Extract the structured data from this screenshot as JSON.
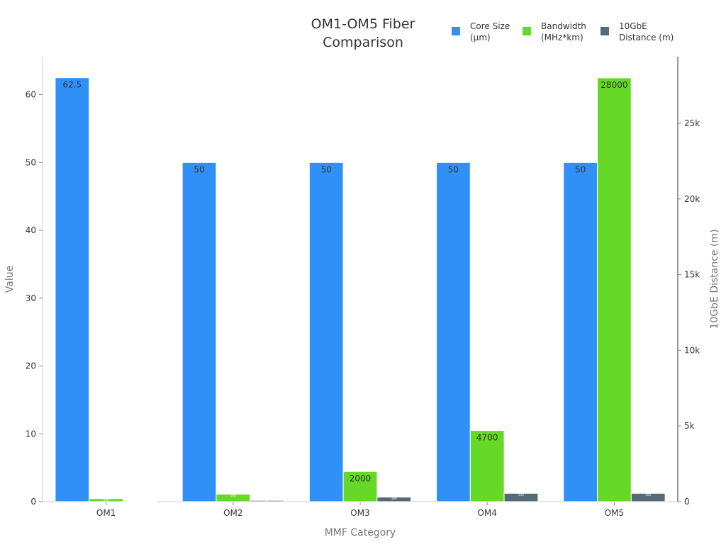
{
  "chart_data": {
    "type": "bar",
    "title": "OM1-OM5 Fiber Comparison",
    "xlabel": "MMF Category",
    "ylabel": "Value",
    "y2label": "10GbE Distance (m)",
    "categories": [
      "OM1",
      "OM2",
      "OM3",
      "OM4",
      "OM5"
    ],
    "ylim": [
      0,
      65.6
    ],
    "y_ticks": [
      0,
      10,
      20,
      30,
      40,
      50,
      60
    ],
    "y2lim": [
      0,
      29400
    ],
    "y2_ticks": [
      {
        "value": 0,
        "label": "0"
      },
      {
        "value": 5000,
        "label": "5k"
      },
      {
        "value": 10000,
        "label": "10k"
      },
      {
        "value": 15000,
        "label": "15k"
      },
      {
        "value": 20000,
        "label": "20k"
      },
      {
        "value": 25000,
        "label": "25k"
      }
    ],
    "legend_position": "top-right",
    "grid": false,
    "series": [
      {
        "name": "Core Size (µm)",
        "name_lines": [
          "Core Size",
          "(µm)"
        ],
        "color": "#2f91f7",
        "axis": "left",
        "values": [
          62.5,
          50,
          50,
          50,
          50
        ],
        "labels": [
          "62.5",
          "50",
          "50",
          "50",
          "50"
        ]
      },
      {
        "name": "Bandwidth (MHz*km)",
        "name_lines": [
          "Bandwidth",
          "(MHz*km)"
        ],
        "color": "#66d926",
        "axis": "right",
        "values": [
          200,
          500,
          2000,
          4700,
          28000
        ],
        "labels": [
          "200",
          "500",
          "2000",
          "4700",
          "28000"
        ]
      },
      {
        "name": "10GbE Distance (m)",
        "name_lines": [
          "10GbE",
          "Distance (m)"
        ],
        "color": "#546a76",
        "axis": "right",
        "values": [
          33,
          82,
          300,
          550,
          550
        ],
        "labels": [
          "33",
          "82",
          "300",
          "550",
          "550"
        ]
      }
    ]
  }
}
